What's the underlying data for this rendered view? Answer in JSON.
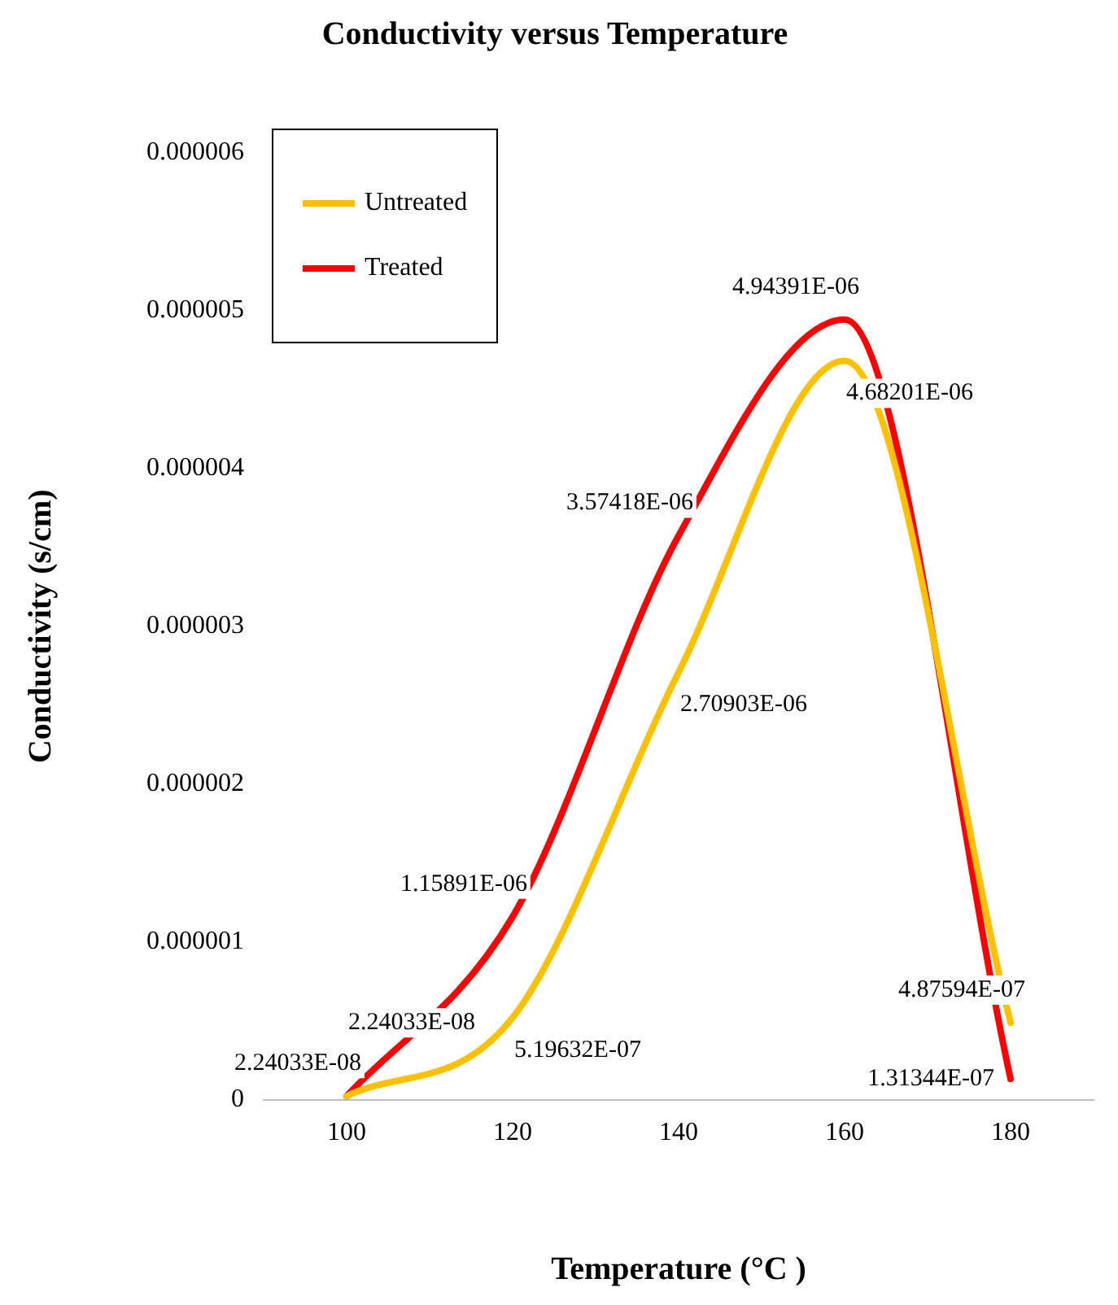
{
  "chart_data": {
    "type": "line",
    "title": "Conductivity versus Temperature",
    "xlabel": "Temperature (°C )",
    "ylabel": "Conductivity (s/cm)",
    "x": [
      100,
      120,
      140,
      160,
      180
    ],
    "series": [
      {
        "name": "Untreated",
        "color": "#ffc000",
        "values": [
          2.24033e-08,
          5.19632e-07,
          2.70903e-06,
          4.68201e-06,
          4.87594e-07
        ],
        "value_labels": [
          "2.24033E-08",
          "5.19632E-07",
          "2.70903E-06",
          "4.68201E-06",
          "4.87594E-07"
        ]
      },
      {
        "name": "Treated",
        "color": "#ff0000",
        "values": [
          2.24033e-08,
          1.15891e-06,
          3.57418e-06,
          4.94391e-06,
          1.31344e-07
        ],
        "value_labels": [
          "2.24033E-08",
          "1.15891E-06",
          "3.57418E-06",
          "4.94391E-06",
          "1.31344E-07"
        ]
      }
    ],
    "xlim": [
      90,
      190
    ],
    "xticks": [
      100,
      120,
      140,
      160,
      180
    ],
    "ylim": [
      0,
      6e-06
    ],
    "yticks": [
      0,
      {
        "value": 1e-06,
        "label": "0.000001"
      },
      {
        "value": 2e-06,
        "label": "0.000002"
      },
      {
        "value": 3e-06,
        "label": "0.000003"
      },
      {
        "value": 4e-06,
        "label": "0.000004"
      },
      {
        "value": 5e-06,
        "label": "0.000005"
      },
      {
        "value": 6e-06,
        "label": "0.000006"
      }
    ],
    "grid": false,
    "legend": "top left",
    "marker": "none",
    "line_style": "solid"
  }
}
